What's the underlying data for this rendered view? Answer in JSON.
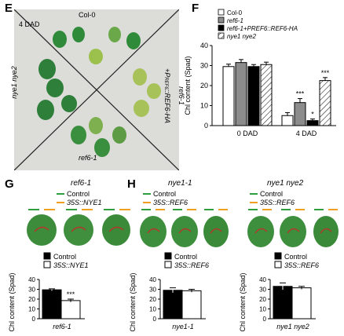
{
  "panels": {
    "E": {
      "letter": "E",
      "dad": "4 DAD",
      "top": "Col-0",
      "left": "nye1 nye2",
      "right_line1": "ref6-1",
      "right_line2a": "+P",
      "right_line2b": "REF6",
      "right_line2c": "::REF6-HA",
      "bottom": "ref6-1"
    },
    "F": {
      "letter": "F",
      "legend": [
        "Col-0",
        "ref6-1",
        "ref6-1+PREF6::REF6-HA",
        "nye1 nye2"
      ]
    },
    "G": {
      "letter": "G",
      "title": "ref6-1",
      "control": "Control",
      "oe": "35S::NYE1"
    },
    "H": {
      "letter": "H",
      "left_title": "nye1-1",
      "right_title": "nye1 nye2",
      "control": "Control",
      "oe": "35S::REF6"
    }
  },
  "chart_data": [
    {
      "id": "F",
      "type": "bar",
      "categories": [
        "0 DAD",
        "4 DAD"
      ],
      "series": [
        {
          "name": "Col-0",
          "values": [
            29.5,
            5
          ],
          "errors": [
            1.2,
            1.5
          ]
        },
        {
          "name": "ref6-1",
          "values": [
            31.5,
            11.5
          ],
          "errors": [
            1.5,
            2.0
          ]
        },
        {
          "name": "ref6-1+PREF6::REF6-HA",
          "values": [
            29.5,
            2.5
          ],
          "errors": [
            1.0,
            0.8
          ]
        },
        {
          "name": "nye1 nye2",
          "values": [
            30.5,
            22.5
          ],
          "errors": [
            1.2,
            1.5
          ]
        }
      ],
      "annotations": [
        {
          "category": "4 DAD",
          "series": "ref6-1",
          "text": "***"
        },
        {
          "category": "4 DAD",
          "series": "ref6-1+PREF6::REF6-HA",
          "text": "*"
        },
        {
          "category": "4 DAD",
          "series": "nye1 nye2",
          "text": "***"
        }
      ],
      "ylabel": "Chl content (Spad)",
      "ylim": [
        0,
        40
      ],
      "yticks": [
        "0",
        "10",
        "20",
        "30",
        "40"
      ]
    },
    {
      "id": "G",
      "type": "bar",
      "categories": [
        "ref6-1"
      ],
      "series": [
        {
          "name": "Control",
          "values": [
            29.5
          ],
          "errors": [
            1.0
          ]
        },
        {
          "name": "35S::NYE1",
          "values": [
            18.5
          ],
          "errors": [
            1.5
          ]
        }
      ],
      "annotations": [
        {
          "series": "35S::NYE1",
          "text": "***"
        }
      ],
      "xlabel": "ref6-1",
      "ylabel": "Chl content (Spad)",
      "ylim": [
        0,
        40
      ],
      "yticks": [
        "0",
        "10",
        "20",
        "30",
        "40"
      ]
    },
    {
      "id": "H1",
      "type": "bar",
      "categories": [
        "nye1-1"
      ],
      "series": [
        {
          "name": "Control",
          "values": [
            29
          ],
          "errors": [
            2.5
          ]
        },
        {
          "name": "35S::REF6",
          "values": [
            28.5
          ],
          "errors": [
            1.5
          ]
        }
      ],
      "xlabel": "nye1-1",
      "ylabel": "Chl content (Spad)",
      "ylim": [
        0,
        40
      ],
      "yticks": [
        "0",
        "10",
        "20",
        "30",
        "40"
      ]
    },
    {
      "id": "H2",
      "type": "bar",
      "categories": [
        "nye1 nye2"
      ],
      "series": [
        {
          "name": "Control",
          "values": [
            33
          ],
          "errors": [
            3.5
          ]
        },
        {
          "name": "35S::REF6",
          "values": [
            31.5
          ],
          "errors": [
            1.5
          ]
        }
      ],
      "xlabel": "nye1 nye2",
      "ylabel": "Chl content (Spad)",
      "ylim": [
        0,
        40
      ],
      "yticks": [
        "0",
        "10",
        "20",
        "30",
        "40"
      ]
    }
  ],
  "colors": {
    "black_bar": "#000000",
    "grey_bar": "#8c8c8c",
    "control_line": "#2e9e3e",
    "oe_line": "#f0a020",
    "photo_bg": "#dcdcd8",
    "leaf_green": "#3f8f3f",
    "leaf_yellow": "#a8c25a"
  }
}
